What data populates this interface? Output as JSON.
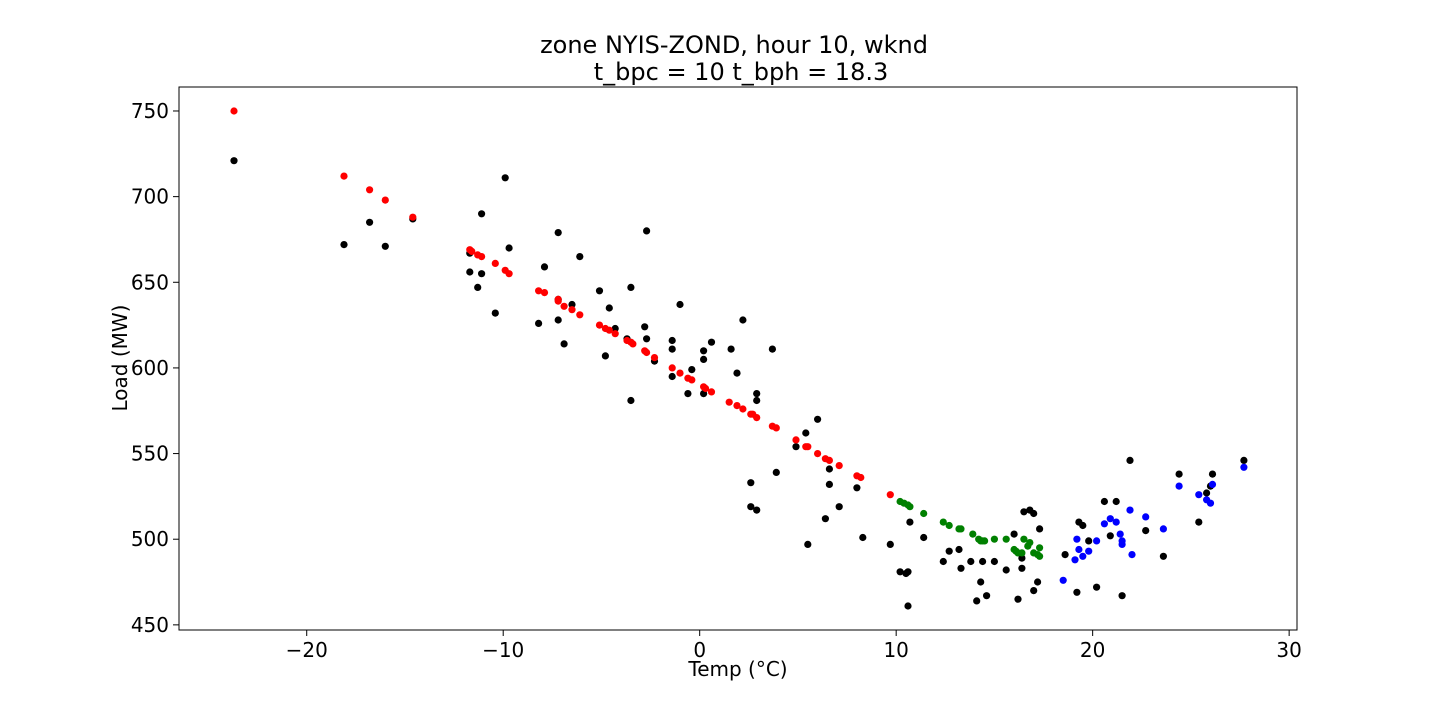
{
  "chart_data": {
    "type": "scatter",
    "title": "zone NYIS-ZOND, hour 10, wknd",
    "subtitle": "t_bpc = 10  t_bph = 18.3",
    "xlabel": "Temp (°C)",
    "ylabel": "Load (MW)",
    "xlim": [
      -26.5,
      30.4
    ],
    "ylim": [
      447,
      764
    ],
    "xticks": [
      -20,
      -10,
      0,
      10,
      20,
      30
    ],
    "xtick_labels": [
      "−20",
      "−10",
      "0",
      "10",
      "20",
      "30"
    ],
    "yticks": [
      450,
      500,
      550,
      600,
      650,
      700,
      750
    ],
    "ytick_labels": [
      "450",
      "500",
      "550",
      "600",
      "650",
      "700",
      "750"
    ],
    "grid": false,
    "legend": "none",
    "series": [
      {
        "color": "#000000",
        "points": [
          [
            -23.7,
            721
          ],
          [
            -18.1,
            672
          ],
          [
            -16.8,
            685
          ],
          [
            -16.0,
            671
          ],
          [
            -14.6,
            687
          ],
          [
            -11.7,
            667
          ],
          [
            -11.7,
            656
          ],
          [
            -11.1,
            655
          ],
          [
            -11.3,
            647
          ],
          [
            -11.1,
            690
          ],
          [
            -10.4,
            632
          ],
          [
            -9.9,
            711
          ],
          [
            -9.7,
            670
          ],
          [
            -8.2,
            626
          ],
          [
            -7.9,
            659
          ],
          [
            -7.2,
            679
          ],
          [
            -7.2,
            628
          ],
          [
            -7.2,
            640
          ],
          [
            -6.9,
            614
          ],
          [
            -6.5,
            637
          ],
          [
            -6.1,
            665
          ],
          [
            -5.1,
            645
          ],
          [
            -4.8,
            607
          ],
          [
            -4.6,
            635
          ],
          [
            -4.3,
            623
          ],
          [
            -3.7,
            617
          ],
          [
            -3.5,
            581
          ],
          [
            -3.5,
            647
          ],
          [
            -2.8,
            624
          ],
          [
            -2.7,
            617
          ],
          [
            -2.7,
            680
          ],
          [
            -2.3,
            604
          ],
          [
            -1.4,
            616
          ],
          [
            -1.4,
            611
          ],
          [
            -1.4,
            595
          ],
          [
            -1.0,
            637
          ],
          [
            -0.6,
            585
          ],
          [
            -0.4,
            599
          ],
          [
            0.2,
            605
          ],
          [
            0.2,
            610
          ],
          [
            0.2,
            585
          ],
          [
            0.6,
            615
          ],
          [
            1.6,
            611
          ],
          [
            1.9,
            597
          ],
          [
            2.2,
            628
          ],
          [
            2.6,
            533
          ],
          [
            2.6,
            519
          ],
          [
            2.9,
            517
          ],
          [
            2.9,
            585
          ],
          [
            2.9,
            581
          ],
          [
            3.7,
            611
          ],
          [
            3.9,
            539
          ],
          [
            4.9,
            554
          ],
          [
            5.4,
            562
          ],
          [
            5.5,
            497
          ],
          [
            6.0,
            570
          ],
          [
            6.4,
            512
          ],
          [
            6.6,
            541
          ],
          [
            6.6,
            532
          ],
          [
            7.1,
            519
          ],
          [
            8.0,
            530
          ],
          [
            8.3,
            501
          ],
          [
            9.7,
            497
          ],
          [
            10.2,
            481
          ],
          [
            10.5,
            480
          ],
          [
            10.6,
            461
          ],
          [
            10.6,
            481
          ],
          [
            10.7,
            510
          ],
          [
            11.4,
            501
          ],
          [
            12.4,
            487
          ],
          [
            12.7,
            493
          ],
          [
            13.2,
            494
          ],
          [
            13.3,
            483
          ],
          [
            13.8,
            487
          ],
          [
            14.1,
            464
          ],
          [
            14.3,
            475
          ],
          [
            14.4,
            487
          ],
          [
            14.6,
            467
          ],
          [
            15.0,
            487
          ],
          [
            15.6,
            482
          ],
          [
            16.0,
            503
          ],
          [
            16.2,
            465
          ],
          [
            16.4,
            483
          ],
          [
            16.4,
            489
          ],
          [
            16.5,
            516
          ],
          [
            16.8,
            517
          ],
          [
            17.0,
            515
          ],
          [
            17.0,
            470
          ],
          [
            17.2,
            475
          ],
          [
            17.3,
            506
          ],
          [
            18.6,
            491
          ],
          [
            19.2,
            469
          ],
          [
            19.3,
            510
          ],
          [
            19.5,
            508
          ],
          [
            19.8,
            499
          ],
          [
            20.2,
            472
          ],
          [
            20.6,
            522
          ],
          [
            20.9,
            502
          ],
          [
            21.2,
            522
          ],
          [
            21.5,
            467
          ],
          [
            21.9,
            546
          ],
          [
            22.7,
            505
          ],
          [
            23.6,
            490
          ],
          [
            24.4,
            538
          ],
          [
            25.4,
            510
          ],
          [
            25.8,
            527
          ],
          [
            26.1,
            538
          ],
          [
            26.0,
            531
          ],
          [
            27.7,
            546
          ]
        ]
      },
      {
        "color": "#ff0000",
        "points": [
          [
            -23.7,
            750
          ],
          [
            -18.1,
            712
          ],
          [
            -16.8,
            704
          ],
          [
            -16.0,
            698
          ],
          [
            -14.6,
            688
          ],
          [
            -11.7,
            669
          ],
          [
            -11.6,
            668
          ],
          [
            -11.3,
            666
          ],
          [
            -11.1,
            665
          ],
          [
            -10.4,
            661
          ],
          [
            -9.9,
            657
          ],
          [
            -9.7,
            655
          ],
          [
            -8.2,
            645
          ],
          [
            -7.9,
            644
          ],
          [
            -7.2,
            640
          ],
          [
            -7.2,
            639
          ],
          [
            -6.9,
            636
          ],
          [
            -6.5,
            634
          ],
          [
            -6.1,
            631
          ],
          [
            -5.1,
            625
          ],
          [
            -4.8,
            623
          ],
          [
            -4.6,
            622
          ],
          [
            -4.3,
            620
          ],
          [
            -3.7,
            616
          ],
          [
            -3.5,
            615
          ],
          [
            -3.4,
            614
          ],
          [
            -2.8,
            610
          ],
          [
            -2.7,
            609
          ],
          [
            -2.3,
            606
          ],
          [
            -1.4,
            600
          ],
          [
            -1.0,
            597
          ],
          [
            -0.6,
            594
          ],
          [
            -0.4,
            593
          ],
          [
            0.2,
            589
          ],
          [
            0.3,
            588
          ],
          [
            0.6,
            586
          ],
          [
            1.5,
            580
          ],
          [
            1.9,
            578
          ],
          [
            2.2,
            576
          ],
          [
            2.6,
            573
          ],
          [
            2.7,
            573
          ],
          [
            2.9,
            571
          ],
          [
            3.7,
            566
          ],
          [
            3.9,
            565
          ],
          [
            4.9,
            558
          ],
          [
            5.4,
            554
          ],
          [
            5.5,
            554
          ],
          [
            6.0,
            550
          ],
          [
            6.4,
            547
          ],
          [
            6.6,
            546
          ],
          [
            7.1,
            543
          ],
          [
            8.0,
            537
          ],
          [
            8.2,
            536
          ],
          [
            9.7,
            526
          ]
        ]
      },
      {
        "color": "#008000",
        "points": [
          [
            10.2,
            522
          ],
          [
            10.4,
            521
          ],
          [
            10.6,
            520
          ],
          [
            10.7,
            519
          ],
          [
            11.4,
            515
          ],
          [
            12.4,
            510
          ],
          [
            12.7,
            508
          ],
          [
            13.2,
            506
          ],
          [
            13.3,
            506
          ],
          [
            13.9,
            503
          ],
          [
            14.2,
            500
          ],
          [
            14.3,
            499
          ],
          [
            14.4,
            499
          ],
          [
            14.5,
            499
          ],
          [
            15.0,
            500
          ],
          [
            15.6,
            500
          ],
          [
            16.0,
            494
          ],
          [
            16.1,
            493
          ],
          [
            16.2,
            492
          ],
          [
            16.4,
            492
          ],
          [
            16.5,
            500
          ],
          [
            16.7,
            496
          ],
          [
            16.8,
            498
          ],
          [
            17.0,
            492
          ],
          [
            17.2,
            491
          ],
          [
            17.3,
            490
          ],
          [
            17.3,
            495
          ]
        ]
      },
      {
        "color": "#0000ff",
        "points": [
          [
            18.5,
            476
          ],
          [
            19.1,
            488
          ],
          [
            19.2,
            500
          ],
          [
            19.3,
            494
          ],
          [
            19.5,
            490
          ],
          [
            19.8,
            493
          ],
          [
            20.2,
            499
          ],
          [
            20.6,
            509
          ],
          [
            20.9,
            512
          ],
          [
            21.2,
            510
          ],
          [
            21.4,
            503
          ],
          [
            21.5,
            499
          ],
          [
            21.5,
            497
          ],
          [
            21.9,
            517
          ],
          [
            22.0,
            491
          ],
          [
            22.7,
            513
          ],
          [
            23.6,
            506
          ],
          [
            24.4,
            531
          ],
          [
            25.4,
            526
          ],
          [
            25.8,
            523
          ],
          [
            26.0,
            521
          ],
          [
            26.1,
            532
          ],
          [
            27.7,
            542
          ]
        ]
      }
    ]
  }
}
